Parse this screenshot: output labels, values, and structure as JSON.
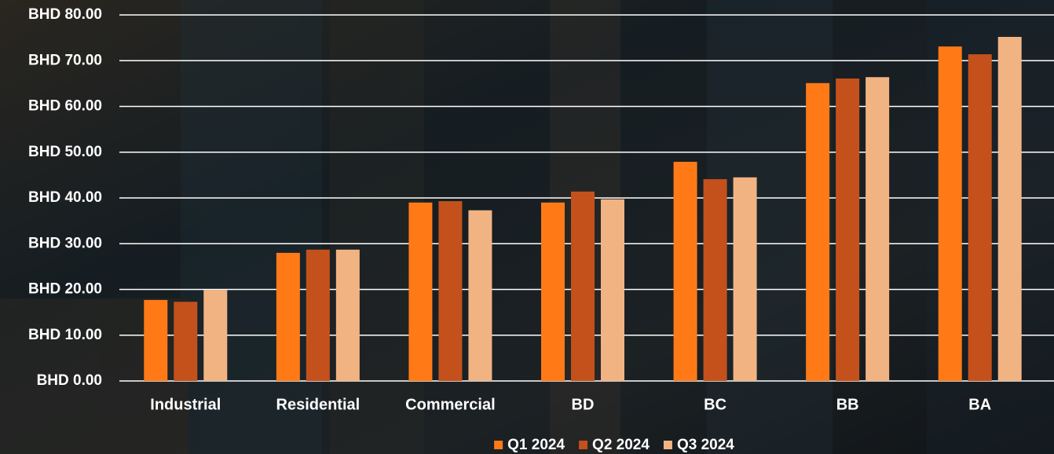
{
  "chart_data": {
    "type": "bar",
    "categories": [
      "Industrial",
      "Residential",
      "Commercial",
      "BD",
      "BC",
      "BB",
      "BA"
    ],
    "series": [
      {
        "name": "Q1 2024",
        "color": "#ff7a17",
        "values": [
          17.7,
          28.0,
          39.0,
          39.0,
          47.9,
          65.1,
          73.1
        ]
      },
      {
        "name": "Q2 2024",
        "color": "#c4511b",
        "values": [
          17.3,
          28.7,
          39.3,
          41.4,
          44.1,
          66.1,
          71.4
        ]
      },
      {
        "name": "Q3 2024",
        "color": "#f2b383",
        "values": [
          19.9,
          28.7,
          37.3,
          39.7,
          44.5,
          66.4,
          75.2
        ]
      }
    ],
    "ylim": [
      0,
      80
    ],
    "yticks": [
      {
        "value": 0,
        "label": "BHD 0.00"
      },
      {
        "value": 10,
        "label": "BHD 10.00"
      },
      {
        "value": 20,
        "label": "BHD 20.00"
      },
      {
        "value": 30,
        "label": "BHD 30.00"
      },
      {
        "value": 40,
        "label": "BHD 40.00"
      },
      {
        "value": 50,
        "label": "BHD 50.00"
      },
      {
        "value": 60,
        "label": "BHD 60.00"
      },
      {
        "value": 70,
        "label": "BHD 70.00"
      },
      {
        "value": 80,
        "label": "BHD 80.00"
      }
    ],
    "grid": true,
    "legend": "bottom"
  }
}
